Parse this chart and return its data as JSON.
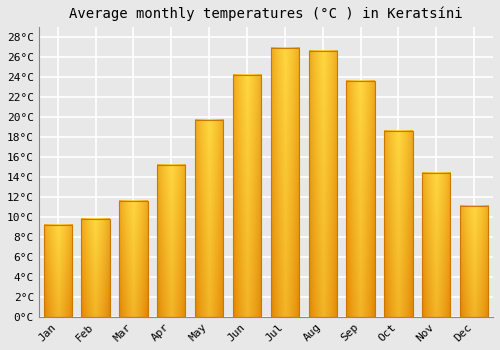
{
  "title": "Average monthly temperatures (°C ) in Keratsíni",
  "months": [
    "Jan",
    "Feb",
    "Mar",
    "Apr",
    "May",
    "Jun",
    "Jul",
    "Aug",
    "Sep",
    "Oct",
    "Nov",
    "Dec"
  ],
  "temperatures": [
    9.2,
    9.8,
    11.6,
    15.2,
    19.7,
    24.2,
    26.9,
    26.6,
    23.6,
    18.6,
    14.4,
    11.1
  ],
  "bar_color_bottom": "#E08000",
  "bar_color_top": "#FFD840",
  "ylim": [
    0,
    29
  ],
  "yticks": [
    0,
    2,
    4,
    6,
    8,
    10,
    12,
    14,
    16,
    18,
    20,
    22,
    24,
    26,
    28
  ],
  "ytick_labels": [
    "0°C",
    "2°C",
    "4°C",
    "6°C",
    "8°C",
    "10°C",
    "12°C",
    "14°C",
    "16°C",
    "18°C",
    "20°C",
    "22°C",
    "24°C",
    "26°C",
    "28°C"
  ],
  "background_color": "#e8e8e8",
  "grid_color": "#ffffff",
  "title_fontsize": 10,
  "tick_fontsize": 8,
  "bar_width": 0.75
}
